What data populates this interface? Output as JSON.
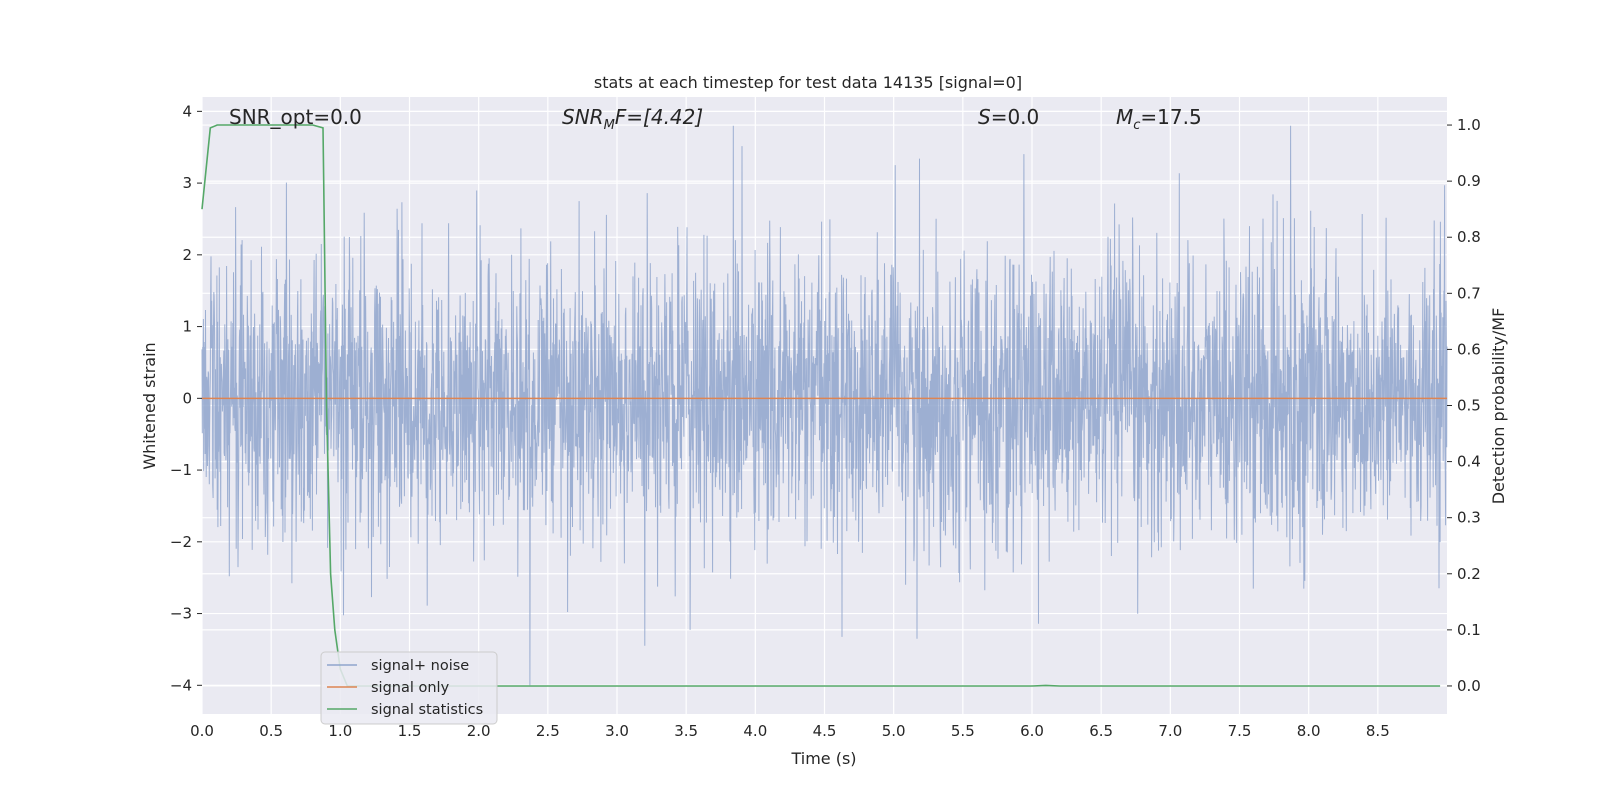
{
  "chart_data": {
    "type": "line",
    "title": "stats at each timestep for test data 14135 [signal=0]",
    "xlabel": "Time (s)",
    "ylabel_left": "Whitened strain",
    "ylabel_right": "Detection probability/MF",
    "xlim": [
      0,
      9.0
    ],
    "ylim_left": [
      -4.4,
      4.2
    ],
    "ylim_right": [
      -0.05,
      1.05
    ],
    "x_ticks": [
      "0.0",
      "0.5",
      "1.0",
      "1.5",
      "2.0",
      "2.5",
      "3.0",
      "3.5",
      "4.0",
      "4.5",
      "5.0",
      "5.5",
      "6.0",
      "6.5",
      "7.0",
      "7.5",
      "8.0",
      "8.5"
    ],
    "y_ticks_left": [
      "−4",
      "−3",
      "−2",
      "−1",
      "0",
      "1",
      "2",
      "3",
      "4"
    ],
    "y_ticks_right": [
      "0.0",
      "0.1",
      "0.2",
      "0.3",
      "0.4",
      "0.5",
      "0.6",
      "0.7",
      "0.8",
      "0.9",
      "1.0"
    ],
    "grid": true,
    "legend_placement": "lower-left",
    "annotations": {
      "snr_opt": "SNR_opt=0.0",
      "snr_mf_base": "SNR",
      "snr_mf_sub": "M",
      "snr_mf_rest": "F=[4.42]",
      "s_var": "S",
      "s_rest": "=0.0",
      "mc_base": "M",
      "mc_sub": "c",
      "mc_rest": "=17.5"
    },
    "series": [
      {
        "name": "signal+ noise",
        "axis": "left",
        "color": "#8fa5cc",
        "description_note": "",
        "noise_sigma": 1.0,
        "noise_peak_examples": [
          {
            "x": 3.84,
            "y": 3.8
          },
          {
            "x": 7.87,
            "y": 3.8
          },
          {
            "x": 2.37,
            "y": -4.0
          },
          {
            "x": 3.2,
            "y": -3.45
          },
          {
            "x": 5.17,
            "y": -3.35
          }
        ]
      },
      {
        "name": "signal only",
        "axis": "left",
        "color": "#dd8452",
        "x": [
          0,
          9.0
        ],
        "y": [
          0,
          0
        ]
      },
      {
        "name": "signal statistics",
        "axis": "right",
        "color": "#55a868",
        "x": [
          0.0,
          0.06,
          0.11,
          0.2,
          0.4,
          0.6,
          0.7,
          0.8,
          0.875,
          0.88,
          0.9,
          0.93,
          0.96,
          1.0,
          1.05,
          2.0,
          4.0,
          6.0,
          6.1,
          6.2,
          7.0,
          8.0,
          8.95
        ],
        "y": [
          0.85,
          0.995,
          1.0,
          1.0,
          1.0,
          1.0,
          1.0,
          1.0,
          0.995,
          0.9,
          0.5,
          0.2,
          0.1,
          0.03,
          0.0,
          0.0,
          0.0,
          0.0,
          0.001,
          0.0,
          0.0,
          0.0,
          0.0
        ]
      }
    ]
  },
  "colors": {
    "plot_background": "#eaeaf2",
    "grid": "#ffffff",
    "noise": "#8fa5cc",
    "signal": "#dd8452",
    "stats": "#55a868"
  }
}
